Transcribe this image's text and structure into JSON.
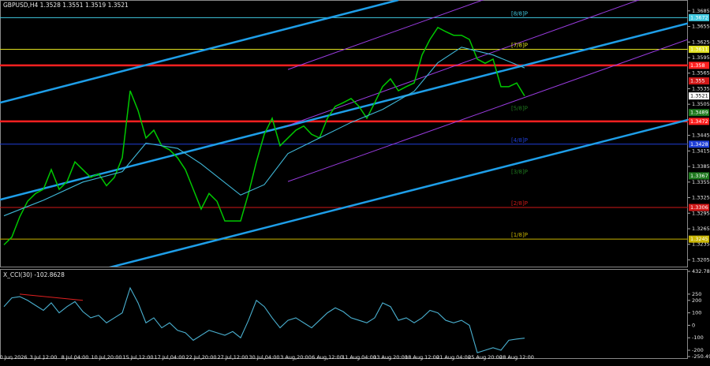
{
  "chart_data": [
    {
      "type": "line",
      "title": "GBPUSD,H4  1.3528 1.3551 1.3519 1.3521",
      "categories": [
        null,
        "30 Jun 2026",
        null,
        null,
        null,
        "3 Jul 12:00",
        null,
        null,
        null,
        "8 Jul 04:00",
        null,
        null,
        null,
        "10 Jul 20:00",
        null,
        null,
        null,
        "15 Jul 12:00",
        null,
        null,
        null,
        "17 Jul 04:00",
        null,
        null,
        null,
        "22 Jul 20:00",
        null,
        null,
        null,
        "27 Jul 12:00",
        null,
        null,
        null,
        "30 Jul 04:00",
        null,
        null,
        null,
        "3 Aug 20:00",
        null,
        null,
        null,
        "6 Aug 12:00",
        null,
        null,
        null,
        "11 Aug 04:00",
        null,
        null,
        null,
        "13 Aug 20:00",
        null,
        null,
        null,
        "18 Aug 12:00",
        null,
        null,
        null,
        "21 Aug 04:00",
        null,
        null,
        null,
        "25 Aug 20:00",
        null,
        null,
        null,
        "28 Aug 12:00",
        null
      ],
      "series": [
        {
          "color": "#00c800",
          "values": [
            1.3234,
            1.3249,
            1.3288,
            1.3318,
            1.3333,
            1.3341,
            1.3379,
            1.3341,
            1.3356,
            1.3394,
            1.3379,
            1.3364,
            1.3371,
            1.3348,
            1.3364,
            1.3402,
            1.3531,
            1.3493,
            1.344,
            1.3455,
            1.3425,
            1.3417,
            1.3402,
            1.3379,
            1.3341,
            1.3303,
            1.3333,
            1.3318,
            1.328,
            1.328,
            1.328,
            1.3333,
            1.3394,
            1.3447,
            1.3478,
            1.3425,
            1.344,
            1.3455,
            1.3463,
            1.3447,
            1.344,
            1.3478,
            1.3501,
            1.3508,
            1.3516,
            1.3501,
            1.3478,
            1.3508,
            1.3539,
            1.3554,
            1.3531,
            1.3539,
            1.3546,
            1.36,
            1.363,
            1.3653,
            1.3645,
            1.3638,
            1.3638,
            1.363,
            1.3592,
            1.3584,
            1.3592,
            1.3539,
            1.3539,
            1.3546,
            1.3521
          ]
        },
        {
          "color": "#3fb8d8",
          "x": [
            0,
            5,
            10,
            15,
            18,
            22,
            25,
            30,
            33,
            36,
            40,
            44,
            48,
            52,
            55,
            58,
            62,
            66
          ],
          "values": [
            1.329,
            1.332,
            1.3355,
            1.3375,
            1.343,
            1.342,
            1.339,
            1.333,
            1.335,
            1.341,
            1.344,
            1.347,
            1.3495,
            1.353,
            1.3585,
            1.3615,
            1.36,
            1.3575
          ]
        }
      ],
      "trendlines": [
        {
          "color": "#1e9ee8",
          "width": 2.5,
          "x": [
            -0.5,
            50
          ],
          "values": [
            1.3508,
            1.3706
          ]
        },
        {
          "color": "#1e9ee8",
          "width": 2.5,
          "x": [
            -0.5,
            86.7
          ],
          "values": [
            1.3321,
            1.3661
          ]
        },
        {
          "color": "#1e9ee8",
          "width": 2.5,
          "x": [
            12,
            86.7
          ],
          "values": [
            1.3185,
            1.3475
          ]
        },
        {
          "color": "#9a3ce0",
          "width": 1,
          "x": [
            36,
            86.7
          ],
          "values": [
            1.3572,
            1.3847
          ]
        },
        {
          "color": "#9a3ce0",
          "width": 1,
          "x": [
            36,
            86.7
          ],
          "values": [
            1.3464,
            1.374
          ]
        },
        {
          "color": "#9a3ce0",
          "width": 1,
          "x": [
            36,
            86.7
          ],
          "values": [
            1.3356,
            1.363
          ]
        }
      ],
      "levels": [
        {
          "value": 1.3672,
          "color": "#40c8e0",
          "width": 1,
          "tag": "[8/8]P"
        },
        {
          "value": 1.3611,
          "color": "#e0e020",
          "width": 1,
          "tag": "[7/8]P"
        },
        {
          "value": 1.358,
          "color": "#ff2020",
          "width": 2.5
        },
        {
          "value": 1.355,
          "color": "#d01818",
          "width": 0
        },
        {
          "value": 1.3521,
          "color": "#ffffff",
          "width": 0
        },
        {
          "value": 1.3489,
          "color": "#1f7a1f",
          "width": 0,
          "tag": "[5/8]P"
        },
        {
          "value": 1.3472,
          "color": "#ff2020",
          "width": 2.5
        },
        {
          "value": 1.3428,
          "color": "#1f3fd8",
          "width": 1,
          "tag": "[4/8]P"
        },
        {
          "value": 1.3367,
          "color": "#1f7a1f",
          "width": 0,
          "tag": "[3/8]P"
        },
        {
          "value": 1.3306,
          "color": "#d01818",
          "width": 1,
          "tag": "[2/8]P"
        },
        {
          "value": 1.3245,
          "color": "#c8b400",
          "width": 1,
          "tag": "[1/8]P"
        }
      ],
      "ylim": [
        1.3192,
        1.3706
      ],
      "yticks": [
        1.3685,
        1.3655,
        1.3625,
        1.3595,
        1.3565,
        1.3535,
        1.3505,
        1.3475,
        1.3445,
        1.3415,
        1.3385,
        1.3355,
        1.3325,
        1.3295,
        1.3265,
        1.3235,
        1.3205
      ]
    },
    {
      "type": "line",
      "title": "X_CCI(30) -102.8628",
      "series": [
        {
          "color": "#4ab0d0",
          "values": [
            150,
            220,
            230,
            200,
            160,
            120,
            180,
            100,
            150,
            190,
            110,
            60,
            80,
            20,
            60,
            100,
            300,
            180,
            20,
            60,
            -20,
            20,
            -40,
            -60,
            -120,
            -80,
            -40,
            -60,
            -80,
            -50,
            -100,
            40,
            200,
            150,
            60,
            -20,
            40,
            60,
            20,
            -20,
            40,
            100,
            140,
            110,
            60,
            40,
            20,
            60,
            180,
            150,
            40,
            60,
            20,
            60,
            120,
            100,
            40,
            20,
            40,
            0,
            -220,
            -200,
            -180,
            -200,
            -120,
            -110,
            -103
          ]
        }
      ],
      "trendlines": [
        {
          "color": "#e02020",
          "width": 1,
          "x": [
            2,
            10
          ],
          "values": [
            250,
            200
          ]
        }
      ],
      "ylim": [
        -250.497,
        432.788
      ],
      "yticks": [
        432.788,
        250,
        200,
        100,
        0,
        -100,
        -200,
        -250.497
      ]
    }
  ]
}
